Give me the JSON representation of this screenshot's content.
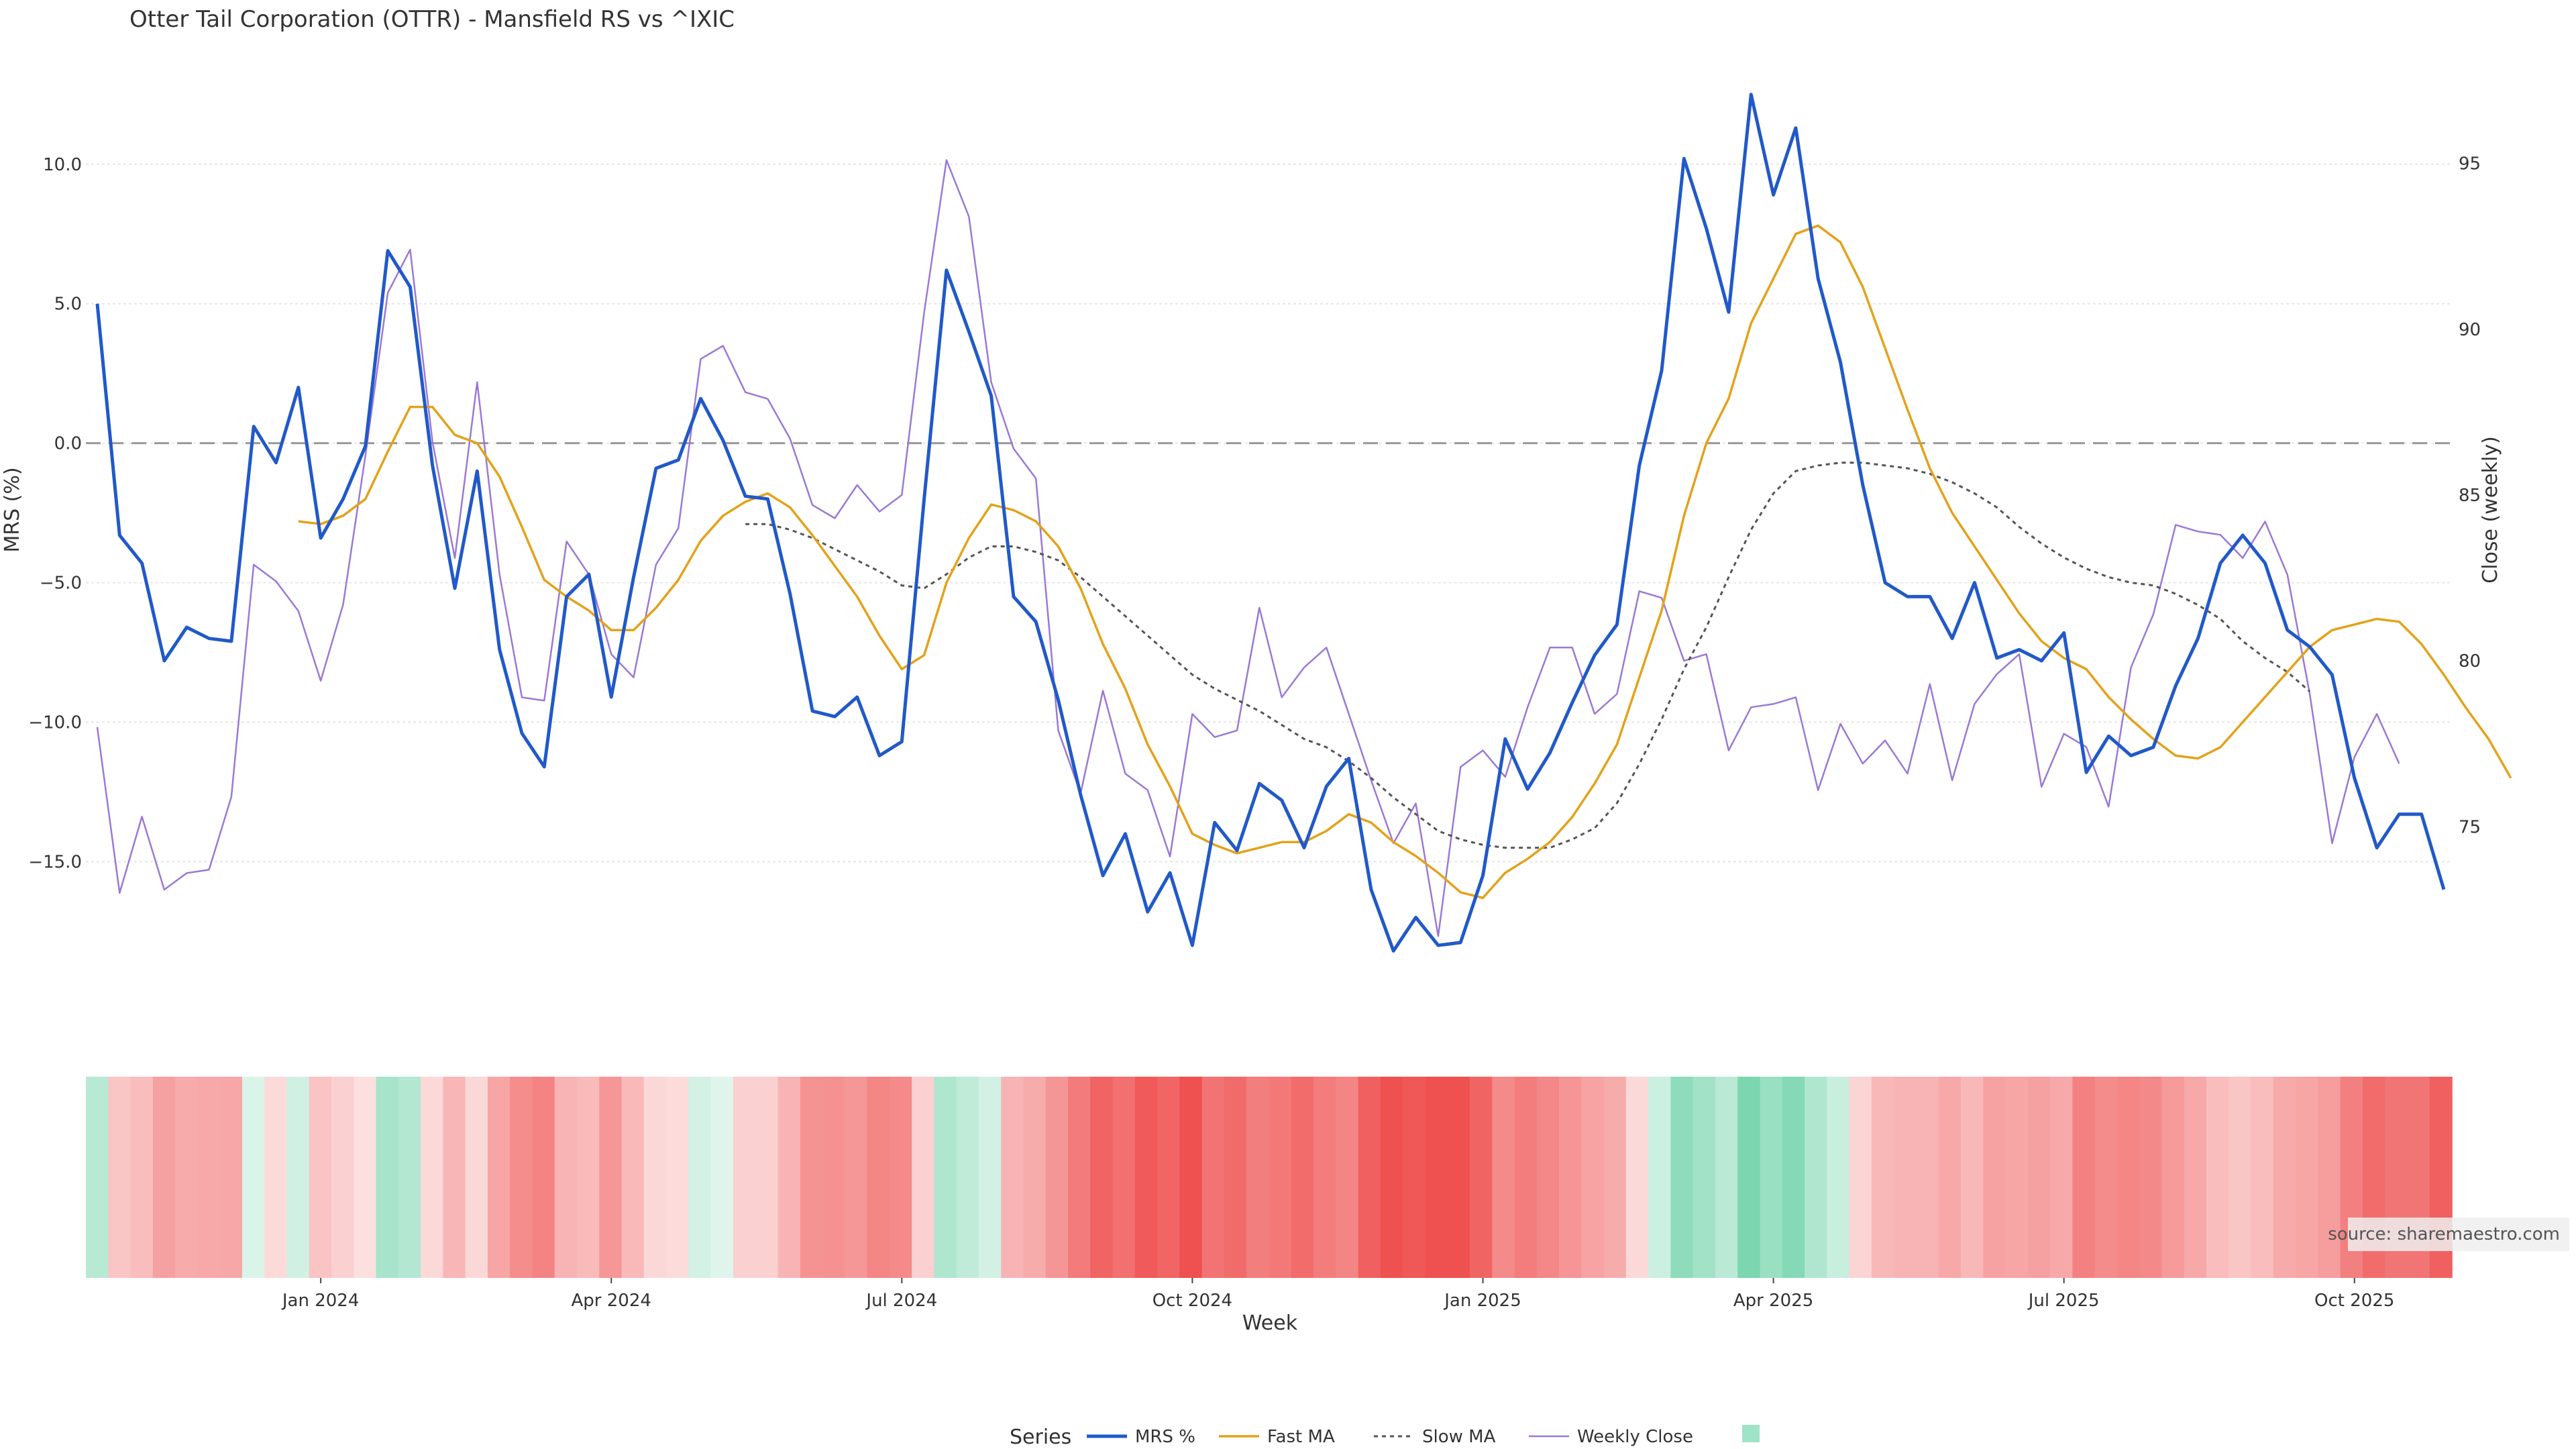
{
  "chart_data": {
    "type": "line",
    "title": "Otter Tail Corporation (OTTR) - Mansfield RS vs ^IXIC",
    "xlabel": "Week",
    "ylabel_left": "MRS (%)",
    "ylabel_right": "Close (weekly)",
    "x_ticks": [
      "Jan 2024",
      "Apr 2024",
      "Jul 2024",
      "Oct 2024",
      "Jan 2025",
      "Apr 2025",
      "Jul 2025",
      "Oct 2025"
    ],
    "ylim_left": [
      -18.5,
      13.0
    ],
    "y_ticks_left": [
      "10.0",
      "5.0",
      "0.0",
      "−5.0",
      "−10.0",
      "−15.0"
    ],
    "ylim_right": [
      71.0,
      97.5
    ],
    "y_ticks_right": [
      "95",
      "90",
      "85",
      "80",
      "75"
    ],
    "zero_line": 0,
    "legend": {
      "title": "Series",
      "position": "bottom",
      "entries": [
        "MRS %",
        "Fast MA",
        "Slow MA",
        "Weekly Close"
      ]
    },
    "source": "source: sharemaestro.com",
    "colors": {
      "mrs": "#2159c8",
      "fast": "#e3a21a",
      "slow": "#555555",
      "close": "#9b79d6",
      "pos": "#50c896",
      "neg": "#ef5050"
    },
    "series": [
      {
        "name": "MRS %",
        "axis": "left",
        "start_index": 0,
        "values": [
          5.0,
          -3.3,
          -4.3,
          -7.8,
          -6.6,
          -7.0,
          -7.1,
          0.6,
          -0.7,
          2.0,
          -3.4,
          -2.0,
          -0.1,
          6.9,
          5.6,
          -0.8,
          -5.2,
          -1.0,
          -7.4,
          -10.4,
          -11.6,
          -5.5,
          -4.7,
          -9.1,
          -4.8,
          -0.9,
          -0.6,
          1.6,
          0.1,
          -1.9,
          -2.0,
          -5.4,
          -9.6,
          -9.8,
          -9.1,
          -11.2,
          -10.7,
          -2.0,
          6.2,
          4.0,
          1.7,
          -5.5,
          -6.4,
          -9.2,
          -12.6,
          -15.5,
          -14.0,
          -16.8,
          -15.4,
          -18.0,
          -13.6,
          -14.6,
          -12.2,
          -12.8,
          -14.5,
          -12.3,
          -11.3,
          -16.0,
          -18.2,
          -17.0,
          -18.0,
          -17.9,
          -15.5,
          -10.6,
          -12.4,
          -11.1,
          -9.3,
          -7.6,
          -6.5,
          -0.8,
          2.6,
          10.2,
          7.7,
          4.7,
          12.5,
          8.9,
          11.3,
          5.9,
          2.9,
          -1.5,
          -5.0,
          -5.5,
          -5.5,
          -7.0,
          -5.0,
          -7.7,
          -7.4,
          -7.8,
          -6.8,
          -11.8,
          -10.5,
          -11.2,
          -10.9,
          -8.7,
          -7.0,
          -4.3,
          -3.3,
          -4.3,
          -6.7,
          -7.3,
          -8.3,
          -12.0,
          -14.5,
          -13.3,
          -13.3,
          -16.0
        ]
      },
      {
        "name": "Fast MA",
        "axis": "left",
        "start_index": 9,
        "values": [
          -2.8,
          -2.9,
          -2.6,
          -2.0,
          -0.3,
          1.3,
          1.3,
          0.3,
          0.0,
          -1.2,
          -3.0,
          -4.9,
          -5.5,
          -6.0,
          -6.7,
          -6.7,
          -5.9,
          -4.9,
          -3.5,
          -2.6,
          -2.1,
          -1.8,
          -2.3,
          -3.3,
          -4.4,
          -5.5,
          -6.9,
          -8.1,
          -7.6,
          -5.0,
          -3.4,
          -2.2,
          -2.4,
          -2.8,
          -3.7,
          -5.2,
          -7.2,
          -8.8,
          -10.8,
          -12.3,
          -14.0,
          -14.4,
          -14.7,
          -14.5,
          -14.3,
          -14.3,
          -13.9,
          -13.3,
          -13.6,
          -14.3,
          -14.8,
          -15.4,
          -16.1,
          -16.3,
          -15.4,
          -14.9,
          -14.3,
          -13.4,
          -12.2,
          -10.8,
          -8.4,
          -6.0,
          -2.6,
          0.0,
          1.6,
          4.3,
          5.9,
          7.5,
          7.8,
          7.2,
          5.6,
          3.4,
          1.2,
          -0.9,
          -2.5,
          -3.7,
          -4.9,
          -6.1,
          -7.1,
          -7.7,
          -8.1,
          -9.1,
          -9.9,
          -10.6,
          -11.2,
          -11.3,
          -10.9,
          -10.0,
          -9.1,
          -8.2,
          -7.3,
          -6.7,
          -6.5,
          -6.3,
          -6.4,
          -7.2,
          -8.3,
          -9.5,
          -10.6,
          -12.0
        ]
      },
      {
        "name": "Slow MA",
        "axis": "left",
        "start_index": 29,
        "values": [
          -2.9,
          -2.9,
          -3.1,
          -3.4,
          -3.8,
          -4.2,
          -4.6,
          -5.1,
          -5.2,
          -4.7,
          -4.1,
          -3.7,
          -3.7,
          -3.9,
          -4.2,
          -4.8,
          -5.5,
          -6.2,
          -6.9,
          -7.6,
          -8.3,
          -8.8,
          -9.2,
          -9.6,
          -10.1,
          -10.6,
          -10.9,
          -11.4,
          -12.0,
          -12.7,
          -13.3,
          -13.9,
          -14.2,
          -14.4,
          -14.5,
          -14.5,
          -14.5,
          -14.2,
          -13.8,
          -12.9,
          -11.5,
          -9.9,
          -8.1,
          -6.6,
          -4.8,
          -3.1,
          -1.8,
          -1.0,
          -0.8,
          -0.7,
          -0.7,
          -0.8,
          -0.9,
          -1.1,
          -1.4,
          -1.8,
          -2.3,
          -3.0,
          -3.6,
          -4.1,
          -4.5,
          -4.8,
          -5.0,
          -5.1,
          -5.4,
          -5.8,
          -6.3,
          -7.1,
          -7.7,
          -8.2,
          -8.9
        ]
      },
      {
        "name": "Weekly Close",
        "axis": "right",
        "start_index": 0,
        "values": [
          78.0,
          73.0,
          75.3,
          73.1,
          73.6,
          73.7,
          75.9,
          82.9,
          82.4,
          81.5,
          79.4,
          81.7,
          86.2,
          91.1,
          92.4,
          86.6,
          83.1,
          88.4,
          82.6,
          78.9,
          78.8,
          83.6,
          82.6,
          80.2,
          79.5,
          82.9,
          84.0,
          89.1,
          89.5,
          88.1,
          87.9,
          86.7,
          84.7,
          84.3,
          85.3,
          84.5,
          85.0,
          90.5,
          95.1,
          93.4,
          88.4,
          86.4,
          85.5,
          77.9,
          76.0,
          79.1,
          76.6,
          76.1,
          74.1,
          78.4,
          77.7,
          77.9,
          81.6,
          78.9,
          79.8,
          80.4,
          78.4,
          76.4,
          74.5,
          75.7,
          71.7,
          76.8,
          77.3,
          76.5,
          78.6,
          80.4,
          80.4,
          78.4,
          79.0,
          82.1,
          81.9,
          80.0,
          80.2,
          77.3,
          78.6,
          78.7,
          78.9,
          76.1,
          78.1,
          76.9,
          77.6,
          76.6,
          79.3,
          76.4,
          78.7,
          79.6,
          80.2,
          76.2,
          77.8,
          77.4,
          75.6,
          79.8,
          81.4,
          84.1,
          83.9,
          83.8,
          83.1,
          84.2,
          82.6,
          79.0,
          74.5,
          77.1,
          78.4,
          76.9
        ]
      }
    ],
    "heat_strip": {
      "description_values": "MRS % per week, encoded as color: positive = green, negative = red, intensity by magnitude",
      "values_ref": "MRS %"
    }
  }
}
